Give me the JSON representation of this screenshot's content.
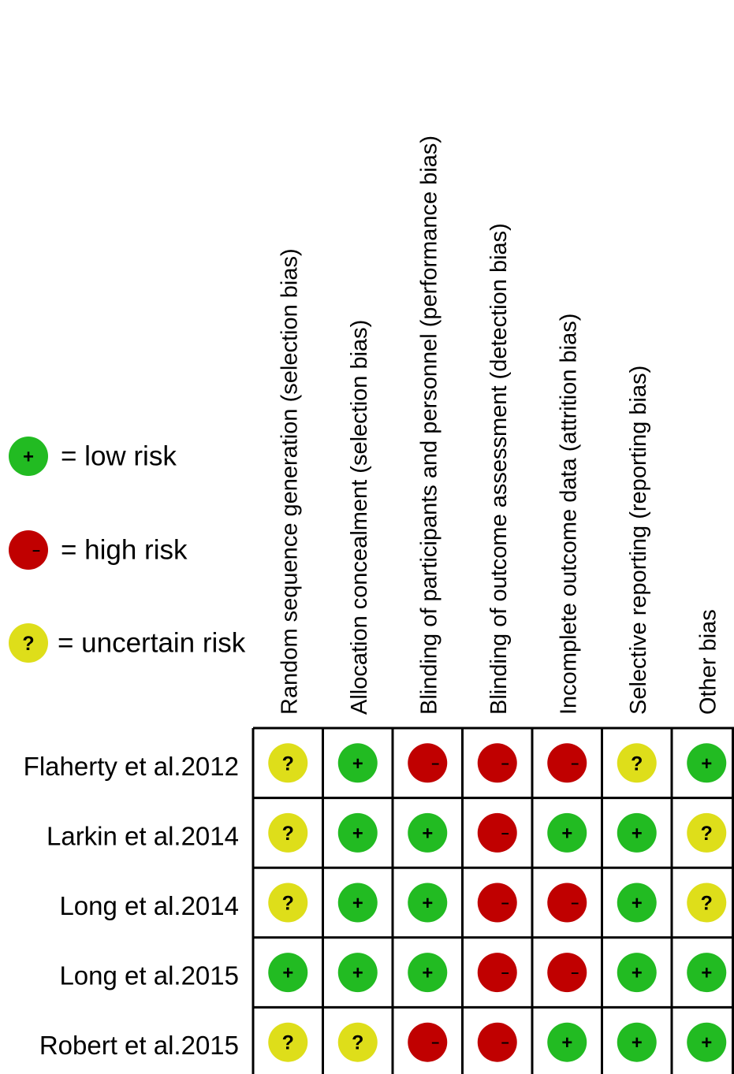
{
  "legend": [
    {
      "key": "low",
      "symbol": "+",
      "label": "= low risk"
    },
    {
      "key": "high",
      "symbol": "−",
      "label": "= high  risk"
    },
    {
      "key": "uncertain",
      "symbol": "?",
      "label": "= uncertain risk"
    }
  ],
  "colors": {
    "low": "#22bb22",
    "high": "#c00000",
    "uncertain": "#dede1a",
    "grid": "#000000"
  },
  "chart_data": {
    "type": "table",
    "columns": [
      "Random sequence generation (selection bias)",
      "Allocation concealment (selection bias)",
      "Blinding of participants and personnel (performance bias)",
      "Blinding of outcome assessment (detection bias)",
      "Incomplete outcome data (attrition bias)",
      "Selective reporting (reporting bias)",
      "Other bias"
    ],
    "rows": [
      {
        "study": "Flaherty et al.2012",
        "ratings": [
          "uncertain",
          "low",
          "high",
          "high",
          "high",
          "uncertain",
          "low"
        ]
      },
      {
        "study": "Larkin et al.2014",
        "ratings": [
          "uncertain",
          "low",
          "low",
          "high",
          "low",
          "low",
          "uncertain"
        ]
      },
      {
        "study": "Long et al.2014",
        "ratings": [
          "uncertain",
          "low",
          "low",
          "high",
          "high",
          "low",
          "uncertain"
        ]
      },
      {
        "study": "Long et al.2015",
        "ratings": [
          "low",
          "low",
          "low",
          "high",
          "high",
          "low",
          "low"
        ]
      },
      {
        "study": "Robert et al.2015",
        "ratings": [
          "uncertain",
          "uncertain",
          "high",
          "high",
          "low",
          "low",
          "low"
        ]
      }
    ]
  }
}
